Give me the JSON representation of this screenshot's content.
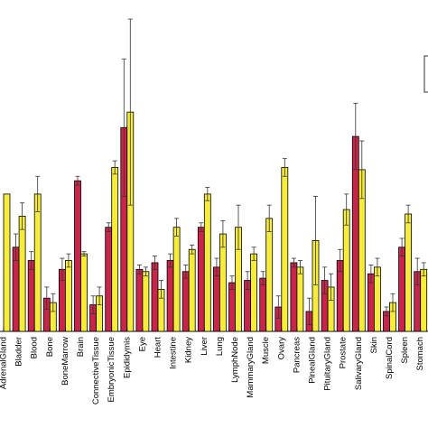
{
  "chart_data": {
    "type": "bar",
    "categories": [
      "AdrenalGland",
      "Bladder",
      "Blood",
      "Bone",
      "BoneMarrow",
      "Brain",
      "ConnectiveTissue",
      "EmbryonicTissue",
      "Epididymis",
      "Eye",
      "Heart",
      "Intestine",
      "Kidney",
      "Liver",
      "Lung",
      "LymphNode",
      "MammaryGland",
      "Muscle",
      "Ovary",
      "Pancreas",
      "PinealGland",
      "PituitaryGland",
      "Prostate",
      "SalivaryGland",
      "Skin",
      "SpinalCord",
      "Spleen",
      "Stomach"
    ],
    "series": [
      {
        "color": "#c8254a",
        "values": [
          0,
          0.38,
          0.32,
          0.15,
          0.28,
          0.68,
          0.12,
          0.47,
          0.92,
          0.28,
          0.31,
          0.32,
          0.27,
          0.47,
          0.29,
          0.22,
          0.23,
          0.24,
          0.11,
          0.31,
          0.09,
          0.23,
          0.32,
          0.88,
          0.26,
          0.09,
          0.38,
          0.27
        ],
        "errors": [
          0,
          0.06,
          0.04,
          0.05,
          0.05,
          0.02,
          0.04,
          0.02,
          0.31,
          0.02,
          0.03,
          0.03,
          0.03,
          0.02,
          0.04,
          0.03,
          0.04,
          0.03,
          0.05,
          0.02,
          0.06,
          0.06,
          0.05,
          0.15,
          0.04,
          0.02,
          0.04,
          0.06
        ]
      },
      {
        "color": "#f5ec3c",
        "values": [
          0.62,
          0.52,
          0.62,
          0.13,
          0.32,
          0.35,
          0.16,
          0.74,
          0.99,
          0.27,
          0.19,
          0.47,
          0.37,
          0.62,
          0.44,
          0.47,
          0.35,
          0.51,
          0.74,
          0.29,
          0.41,
          0.2,
          0.55,
          0.73,
          0.29,
          0.13,
          0.53,
          0.28
        ],
        "errors": [
          0.0,
          0.06,
          0.08,
          0.04,
          0.03,
          0.01,
          0.04,
          0.03,
          0.42,
          0.02,
          0.04,
          0.04,
          0.02,
          0.03,
          0.06,
          0.1,
          0.03,
          0.06,
          0.04,
          0.03,
          0.2,
          0.06,
          0.07,
          0.13,
          0.04,
          0.04,
          0.04,
          0.03
        ]
      }
    ],
    "ylim": [
      0,
      1.5
    ],
    "grid": false,
    "legend": "top-right"
  }
}
